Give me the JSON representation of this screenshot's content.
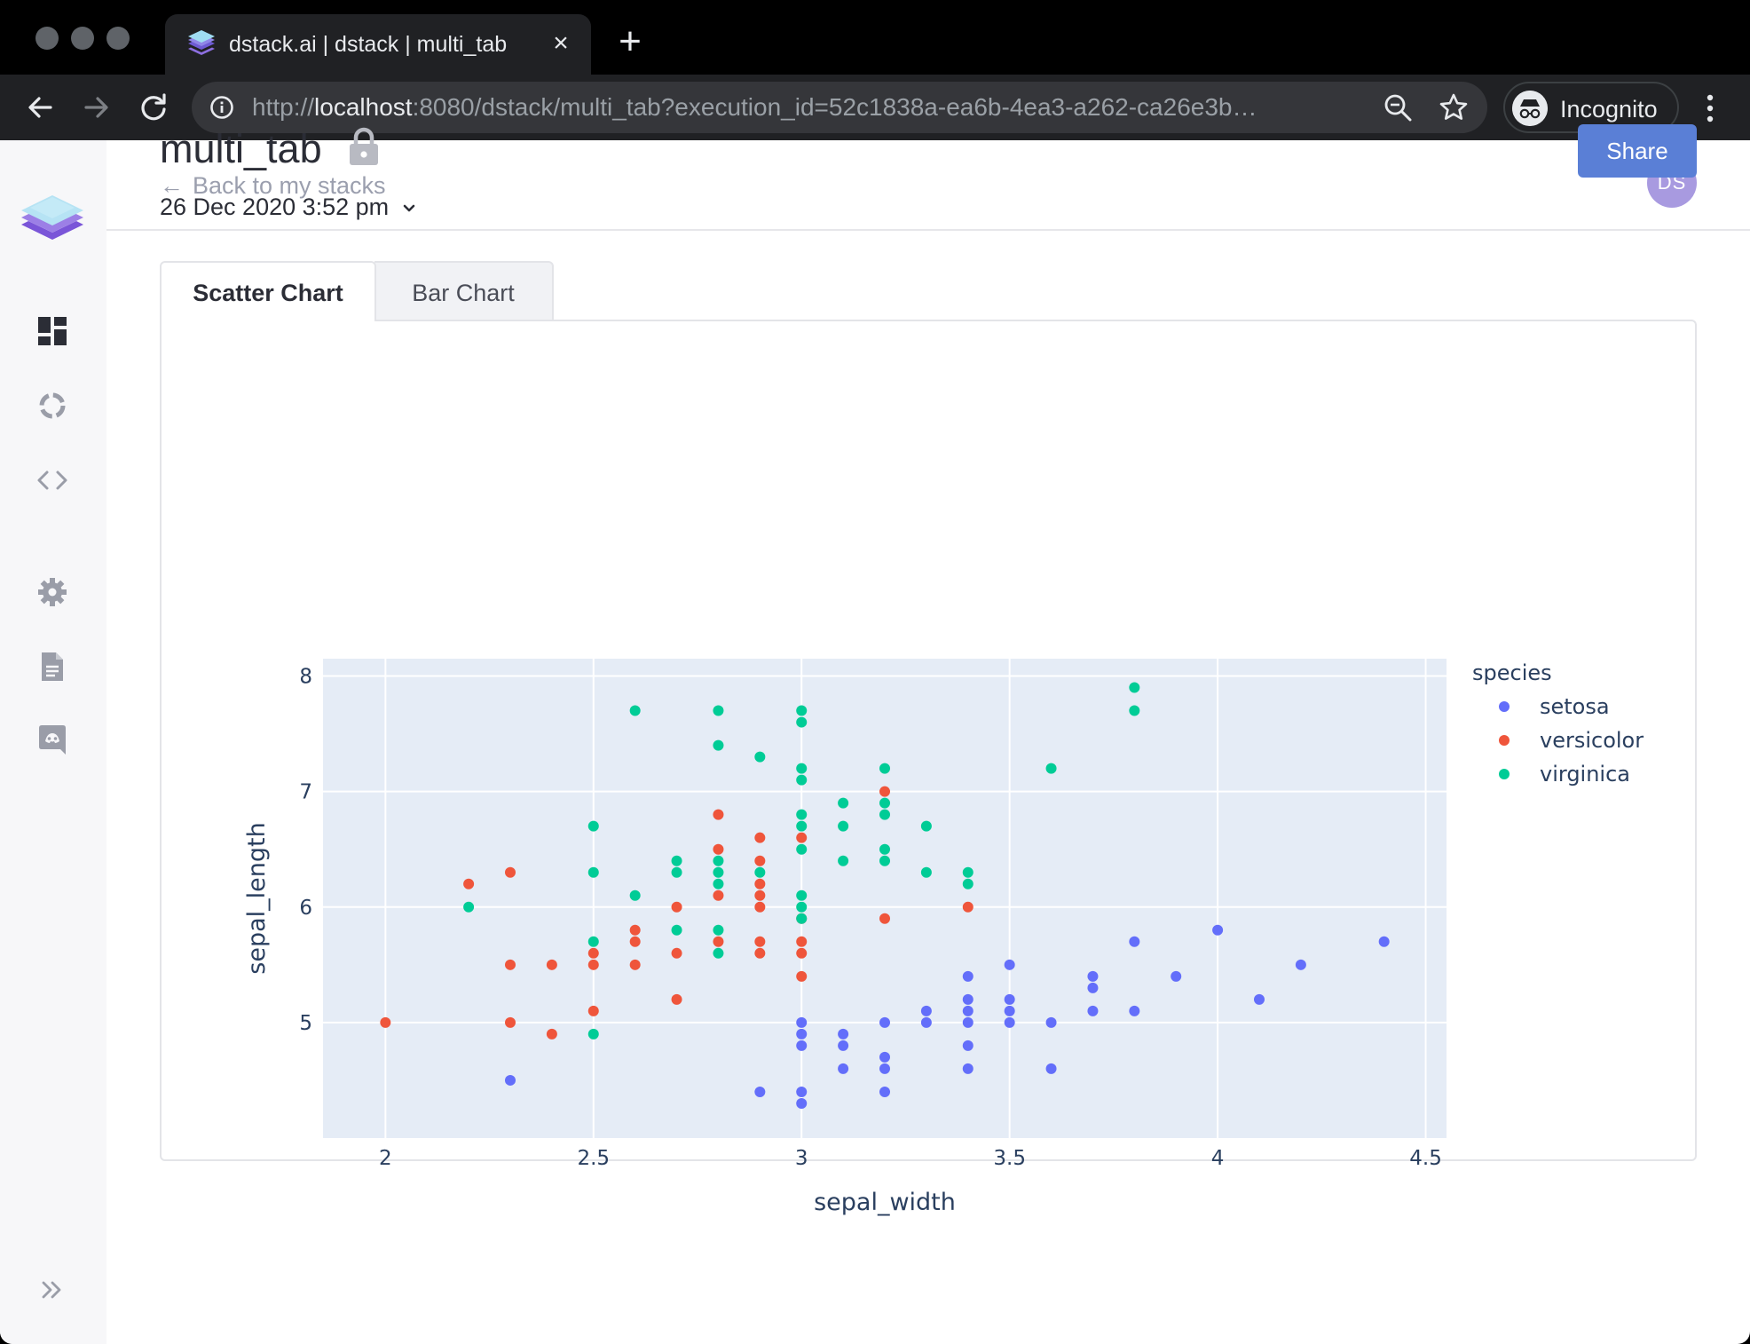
{
  "browser": {
    "tab_title": "dstack.ai | dstack | multi_tab",
    "url_scheme": "http://",
    "url_host": "localhost",
    "url_rest": ":8080/dstack/multi_tab?execution_id=52c1838a-ea6b-4ea3-a262-ca26e3b…",
    "incognito_label": "Incognito"
  },
  "header": {
    "back_label": "Back to my stacks",
    "avatar_initials": "DS"
  },
  "stack": {
    "title": "multi_tab",
    "date": "26 Dec 2020 3:52 pm",
    "share_label": "Share"
  },
  "tabs": [
    {
      "label": "Scatter Chart",
      "active": true
    },
    {
      "label": "Bar Chart",
      "active": false
    }
  ],
  "sidebar": {
    "icons": [
      "dashboard-icon",
      "loading-icon",
      "code-icon",
      "settings-icon",
      "document-icon",
      "discord-icon",
      "expand-icon"
    ]
  },
  "chart_data": {
    "type": "scatter",
    "xlabel": "sepal_width",
    "ylabel": "sepal_length",
    "xlim": [
      1.85,
      4.55
    ],
    "ylim": [
      4.0,
      8.15
    ],
    "xticks": [
      2,
      2.5,
      3,
      3.5,
      4,
      4.5
    ],
    "xtick_labels": [
      "2",
      "2.5",
      "3",
      "3.5",
      "4",
      "4.5"
    ],
    "yticks": [
      5,
      6,
      7,
      8
    ],
    "ytick_labels": [
      "5",
      "6",
      "7",
      "8"
    ],
    "grid": true,
    "legend_title": "species",
    "legend_position": "right",
    "series": [
      {
        "name": "setosa",
        "color": "#636efa",
        "points": [
          [
            3.0,
            5.0
          ],
          [
            3.0,
            4.9
          ],
          [
            3.0,
            4.8
          ],
          [
            3.0,
            4.4
          ],
          [
            3.0,
            4.3
          ],
          [
            2.9,
            4.4
          ],
          [
            2.3,
            4.5
          ],
          [
            3.1,
            4.9
          ],
          [
            3.1,
            4.8
          ],
          [
            3.1,
            4.6
          ],
          [
            3.2,
            5.0
          ],
          [
            3.2,
            4.7
          ],
          [
            3.2,
            4.6
          ],
          [
            3.2,
            4.4
          ],
          [
            3.3,
            5.1
          ],
          [
            3.3,
            5.0
          ],
          [
            3.4,
            5.4
          ],
          [
            3.4,
            5.2
          ],
          [
            3.4,
            5.1
          ],
          [
            3.4,
            5.0
          ],
          [
            3.4,
            4.8
          ],
          [
            3.4,
            4.6
          ],
          [
            3.5,
            5.5
          ],
          [
            3.5,
            5.2
          ],
          [
            3.5,
            5.1
          ],
          [
            3.5,
            5.0
          ],
          [
            3.6,
            5.0
          ],
          [
            3.6,
            4.6
          ],
          [
            3.7,
            5.4
          ],
          [
            3.7,
            5.3
          ],
          [
            3.7,
            5.1
          ],
          [
            3.8,
            5.7
          ],
          [
            3.8,
            5.1
          ],
          [
            3.9,
            5.4
          ],
          [
            4.0,
            5.8
          ],
          [
            4.1,
            5.2
          ],
          [
            4.2,
            5.5
          ],
          [
            4.4,
            5.7
          ]
        ]
      },
      {
        "name": "versicolor",
        "color": "#ef553b",
        "points": [
          [
            2.0,
            5.0
          ],
          [
            2.2,
            6.2
          ],
          [
            2.3,
            6.3
          ],
          [
            2.3,
            5.5
          ],
          [
            2.3,
            5.0
          ],
          [
            2.4,
            5.5
          ],
          [
            2.4,
            4.9
          ],
          [
            2.5,
            5.6
          ],
          [
            2.5,
            5.5
          ],
          [
            2.5,
            5.1
          ],
          [
            2.6,
            5.8
          ],
          [
            2.6,
            5.7
          ],
          [
            2.6,
            5.5
          ],
          [
            2.7,
            6.0
          ],
          [
            2.7,
            5.6
          ],
          [
            2.7,
            5.2
          ],
          [
            2.8,
            6.8
          ],
          [
            2.8,
            6.5
          ],
          [
            2.8,
            6.1
          ],
          [
            2.8,
            5.7
          ],
          [
            2.9,
            6.6
          ],
          [
            2.9,
            6.4
          ],
          [
            2.9,
            6.2
          ],
          [
            2.9,
            6.1
          ],
          [
            2.9,
            6.0
          ],
          [
            2.9,
            5.7
          ],
          [
            2.9,
            5.6
          ],
          [
            3.0,
            6.6
          ],
          [
            3.0,
            5.9
          ],
          [
            3.0,
            5.7
          ],
          [
            3.0,
            5.6
          ],
          [
            3.0,
            5.4
          ],
          [
            3.2,
            7.0
          ],
          [
            3.2,
            5.9
          ],
          [
            3.4,
            6.0
          ]
        ]
      },
      {
        "name": "virginica",
        "color": "#00cc96",
        "points": [
          [
            2.2,
            6.0
          ],
          [
            2.5,
            6.7
          ],
          [
            2.5,
            6.3
          ],
          [
            2.5,
            5.7
          ],
          [
            2.5,
            4.9
          ],
          [
            2.6,
            7.7
          ],
          [
            2.6,
            6.1
          ],
          [
            2.7,
            6.4
          ],
          [
            2.7,
            6.3
          ],
          [
            2.7,
            5.8
          ],
          [
            2.8,
            7.7
          ],
          [
            2.8,
            7.4
          ],
          [
            2.8,
            6.4
          ],
          [
            2.8,
            6.3
          ],
          [
            2.8,
            6.2
          ],
          [
            2.8,
            5.8
          ],
          [
            2.8,
            5.6
          ],
          [
            2.9,
            7.3
          ],
          [
            2.9,
            6.3
          ],
          [
            3.0,
            7.7
          ],
          [
            3.0,
            7.6
          ],
          [
            3.0,
            7.2
          ],
          [
            3.0,
            7.1
          ],
          [
            3.0,
            6.8
          ],
          [
            3.0,
            6.7
          ],
          [
            3.0,
            6.5
          ],
          [
            3.0,
            6.1
          ],
          [
            3.0,
            6.0
          ],
          [
            3.0,
            5.9
          ],
          [
            3.1,
            6.9
          ],
          [
            3.1,
            6.7
          ],
          [
            3.1,
            6.4
          ],
          [
            3.2,
            7.2
          ],
          [
            3.2,
            6.9
          ],
          [
            3.2,
            6.8
          ],
          [
            3.2,
            6.5
          ],
          [
            3.2,
            6.4
          ],
          [
            3.3,
            6.7
          ],
          [
            3.3,
            6.3
          ],
          [
            3.4,
            6.3
          ],
          [
            3.4,
            6.2
          ],
          [
            3.6,
            7.2
          ],
          [
            3.8,
            7.9
          ],
          [
            3.8,
            7.7
          ]
        ]
      }
    ]
  }
}
